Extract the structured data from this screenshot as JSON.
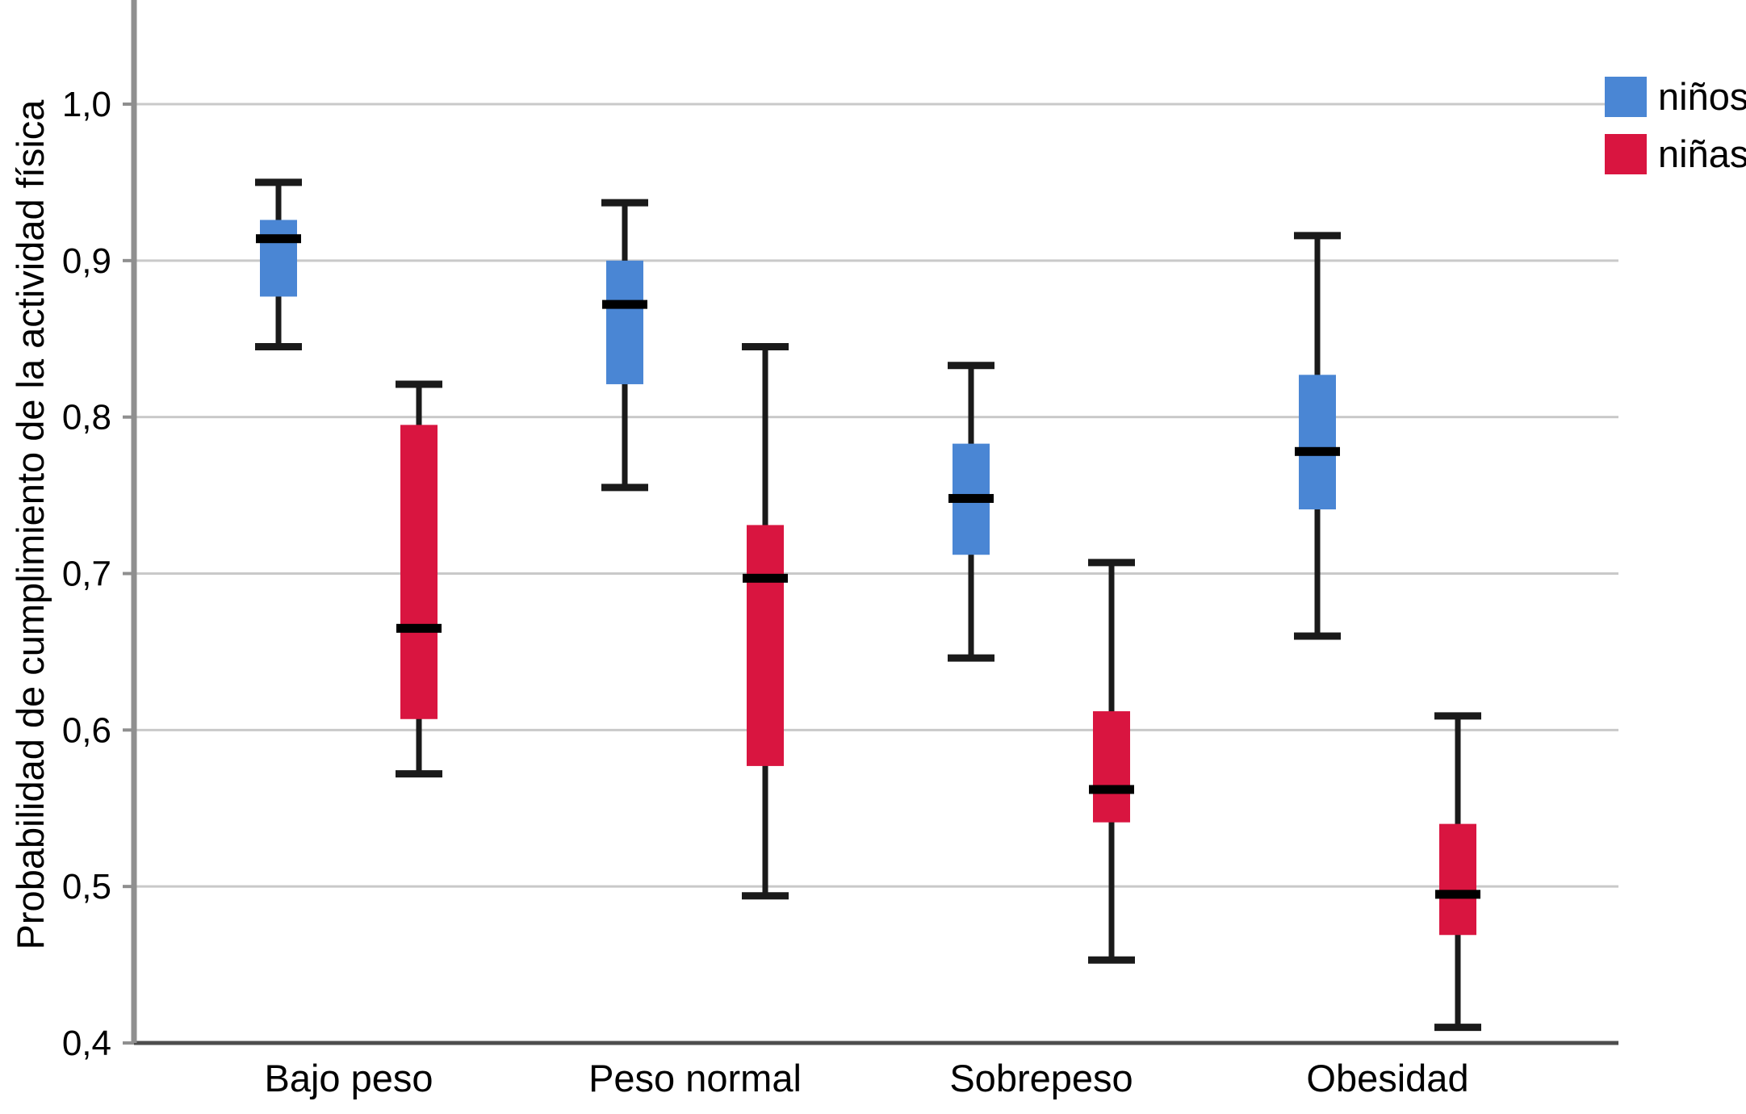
{
  "chart_data": {
    "type": "boxplot",
    "title": "",
    "xlabel": "",
    "ylabel": "Probabilidad de cumplimiento de la actividad física",
    "categories": [
      "Bajo peso",
      "Peso normal",
      "Sobrepeso",
      "Obesidad"
    ],
    "y_ticks": [
      {
        "label": "1,0",
        "value": 1.0
      },
      {
        "label": "0,9",
        "value": 0.9
      },
      {
        "label": "0,8",
        "value": 0.8
      },
      {
        "label": "0,7",
        "value": 0.7
      },
      {
        "label": "0,6",
        "value": 0.6
      },
      {
        "label": "0,5",
        "value": 0.5
      },
      {
        "label": "0,4",
        "value": 0.4
      }
    ],
    "ylim": [
      0.4,
      1.067
    ],
    "grid": true,
    "decimal_separator": ",",
    "legend_position": "top-right",
    "series": [
      {
        "name": "niños",
        "color": "#4a86d4",
        "boxes": [
          {
            "category": "Bajo peso",
            "whisker_low": 0.845,
            "q1": 0.877,
            "median": 0.914,
            "q3": 0.926,
            "whisker_high": 0.95
          },
          {
            "category": "Peso normal",
            "whisker_low": 0.755,
            "q1": 0.821,
            "median": 0.872,
            "q3": 0.9,
            "whisker_high": 0.937
          },
          {
            "category": "Sobrepeso",
            "whisker_low": 0.646,
            "q1": 0.712,
            "median": 0.748,
            "q3": 0.783,
            "whisker_high": 0.833
          },
          {
            "category": "Obesidad",
            "whisker_low": 0.66,
            "q1": 0.741,
            "median": 0.778,
            "q3": 0.827,
            "whisker_high": 0.916
          }
        ]
      },
      {
        "name": "niñas",
        "color": "#d91540",
        "boxes": [
          {
            "category": "Bajo peso",
            "whisker_low": 0.572,
            "q1": 0.607,
            "median": 0.665,
            "q3": 0.795,
            "whisker_high": 0.821
          },
          {
            "category": "Peso normal",
            "whisker_low": 0.494,
            "q1": 0.577,
            "median": 0.697,
            "q3": 0.731,
            "whisker_high": 0.845
          },
          {
            "category": "Sobrepeso",
            "whisker_low": 0.453,
            "q1": 0.541,
            "median": 0.562,
            "q3": 0.612,
            "whisker_high": 0.707
          },
          {
            "category": "Obesidad",
            "whisker_low": 0.41,
            "q1": 0.469,
            "median": 0.495,
            "q3": 0.54,
            "whisker_high": 0.609
          }
        ]
      }
    ],
    "colors": {
      "median_line": "#000000",
      "whisker": "#1a1a1a",
      "gridline": "#c9c9c9",
      "axis_line": "#8f8f8f",
      "bottom_axis_line": "#4d4d4d",
      "text": "#000000"
    }
  },
  "legend": {
    "items": [
      {
        "label": "niños",
        "color": "#4a86d4"
      },
      {
        "label": "niñas",
        "color": "#d91540"
      }
    ]
  }
}
